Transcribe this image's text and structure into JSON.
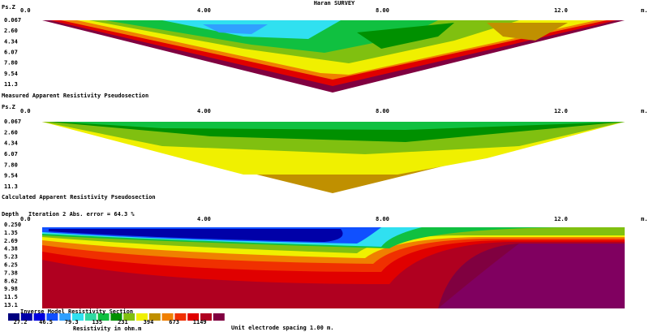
{
  "title": "Haran SURVEY",
  "x_axis": {
    "ticks": [
      "0.0",
      "4.00",
      "8.00",
      "12.0"
    ],
    "unit": "m."
  },
  "panels": [
    {
      "y_label": "Ps.Z",
      "y_ticks": [
        "0.067",
        "2.60",
        "4.34",
        "6.07",
        "7.80",
        "9.54",
        "11.3"
      ],
      "caption": "Measured Apparent Resistivity Pseudosection"
    },
    {
      "y_label": "Ps.Z",
      "y_ticks": [
        "0.067",
        "2.60",
        "4.34",
        "6.07",
        "7.80",
        "9.54",
        "11.3"
      ],
      "caption": "Calculated Apparent Resistivity Pseudosection"
    },
    {
      "y_label": "Depth",
      "status": "Iteration 2 Abs. error = 64.3 %",
      "y_ticks": [
        "0.250",
        "1.35",
        "2.69",
        "4.38",
        "5.23",
        "6.25",
        "7.38",
        "8.62",
        "9.98",
        "11.5",
        "13.1"
      ],
      "caption": "Inverse Model Resistivity Section"
    }
  ],
  "legend": {
    "colors": [
      "#000080",
      "#0000a8",
      "#0000e0",
      "#1050ff",
      "#30a0ff",
      "#30e0f0",
      "#30d8a0",
      "#10c040",
      "#009000",
      "#80c010",
      "#f0f000",
      "#c09000",
      "#f08000",
      "#f03000",
      "#e00000",
      "#b00020",
      "#800040"
    ],
    "labels": [
      "27.2",
      "46.5",
      "79.3",
      "135",
      "231",
      "394",
      "673",
      "1149"
    ],
    "unit": "Resistivity in ohm.m"
  },
  "footer": "Unit electrode spacing 1.00 m."
}
